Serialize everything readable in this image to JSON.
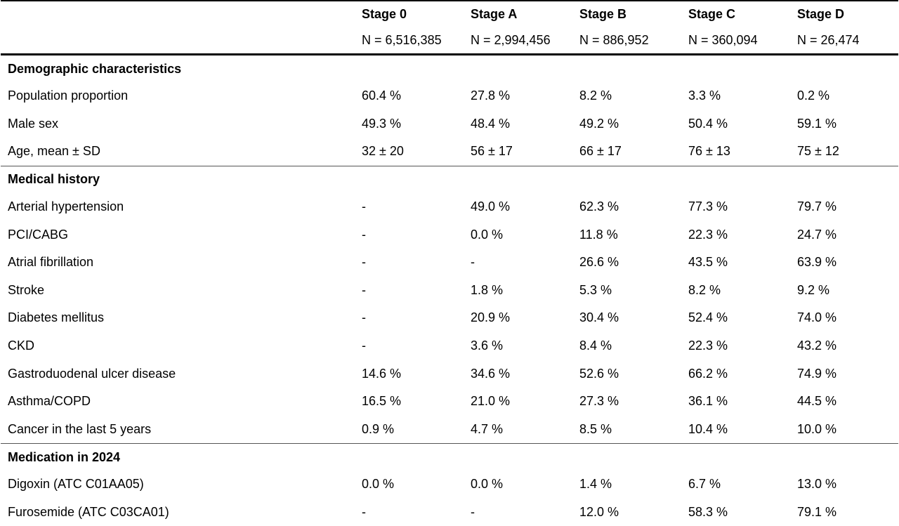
{
  "columns": [
    {
      "stage": "Stage 0",
      "n": "N = 6,516,385"
    },
    {
      "stage": "Stage A",
      "n": "N = 2,994,456"
    },
    {
      "stage": "Stage B",
      "n": "N = 886,952"
    },
    {
      "stage": "Stage C",
      "n": "N = 360,094"
    },
    {
      "stage": "Stage D",
      "n": "N = 26,474"
    }
  ],
  "sections": [
    {
      "title": "Demographic characteristics",
      "rows": [
        {
          "label": "Population proportion",
          "values": [
            "60.4 %",
            "27.8 %",
            "8.2 %",
            "3.3 %",
            "0.2 %"
          ]
        },
        {
          "label": "Male sex",
          "values": [
            "49.3 %",
            "48.4 %",
            "49.2 %",
            "50.4 %",
            "59.1 %"
          ]
        },
        {
          "label": "Age, mean ± SD",
          "values": [
            "32 ± 20",
            "56 ± 17",
            "66 ± 17",
            "76 ± 13",
            "75 ± 12"
          ]
        }
      ]
    },
    {
      "title": "Medical history",
      "rows": [
        {
          "label": "Arterial hypertension",
          "values": [
            "-",
            "49.0 %",
            "62.3 %",
            "77.3 %",
            "79.7 %"
          ]
        },
        {
          "label": "PCI/CABG",
          "values": [
            "-",
            "0.0 %",
            "11.8 %",
            "22.3 %",
            "24.7 %"
          ]
        },
        {
          "label": "Atrial fibrillation",
          "values": [
            "-",
            "-",
            "26.6 %",
            "43.5 %",
            "63.9 %"
          ]
        },
        {
          "label": "Stroke",
          "values": [
            "-",
            "1.8 %",
            "5.3 %",
            "8.2 %",
            "9.2 %"
          ]
        },
        {
          "label": "Diabetes mellitus",
          "values": [
            "-",
            "20.9 %",
            "30.4 %",
            "52.4 %",
            "74.0 %"
          ]
        },
        {
          "label": "CKD",
          "values": [
            "-",
            "3.6 %",
            "8.4 %",
            "22.3 %",
            "43.2 %"
          ]
        },
        {
          "label": "Gastroduodenal ulcer disease",
          "values": [
            "14.6 %",
            "34.6 %",
            "52.6 %",
            "66.2 %",
            "74.9 %"
          ]
        },
        {
          "label": "Asthma/COPD",
          "values": [
            "16.5 %",
            "21.0 %",
            "27.3 %",
            "36.1 %",
            "44.5 %"
          ]
        },
        {
          "label": "Cancer in the last 5 years",
          "values": [
            "0.9 %",
            "4.7 %",
            "8.5 %",
            "10.4 %",
            "10.0 %"
          ]
        }
      ]
    },
    {
      "title": "Medication in 2024",
      "rows": [
        {
          "label": "Digoxin (ATC C01AA05)",
          "values": [
            "0.0 %",
            "0.0 %",
            "1.4 %",
            "6.7 %",
            "13.0 %"
          ]
        },
        {
          "label": "Furosemide (ATC C03CA01)",
          "values": [
            "-",
            "-",
            "12.0 %",
            "58.3 %",
            "79.1 %"
          ]
        }
      ]
    }
  ]
}
